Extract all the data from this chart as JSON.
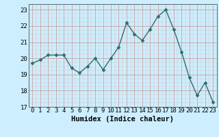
{
  "x": [
    0,
    1,
    2,
    3,
    4,
    5,
    6,
    7,
    8,
    9,
    10,
    11,
    12,
    13,
    14,
    15,
    16,
    17,
    18,
    19,
    20,
    21,
    22,
    23
  ],
  "y": [
    19.7,
    19.9,
    20.2,
    20.2,
    20.2,
    19.4,
    19.1,
    19.5,
    20.0,
    19.3,
    20.0,
    20.7,
    22.2,
    21.5,
    21.1,
    21.8,
    22.6,
    23.0,
    21.8,
    20.4,
    18.8,
    17.7,
    18.5,
    17.3
  ],
  "line_color": "#2d6e6e",
  "marker": "D",
  "marker_size": 2.5,
  "bg_color": "#cceeff",
  "grid_major_color": "#c8a0a0",
  "grid_minor_color": "#ddc0c0",
  "xlabel": "Humidex (Indice chaleur)",
  "xlim": [
    -0.5,
    23.5
  ],
  "ylim": [
    17,
    23.35
  ],
  "yticks": [
    17,
    18,
    19,
    20,
    21,
    22,
    23
  ],
  "xticks": [
    0,
    1,
    2,
    3,
    4,
    5,
    6,
    7,
    8,
    9,
    10,
    11,
    12,
    13,
    14,
    15,
    16,
    17,
    18,
    19,
    20,
    21,
    22,
    23
  ],
  "axis_fontsize": 6.5,
  "label_fontsize": 7.5
}
